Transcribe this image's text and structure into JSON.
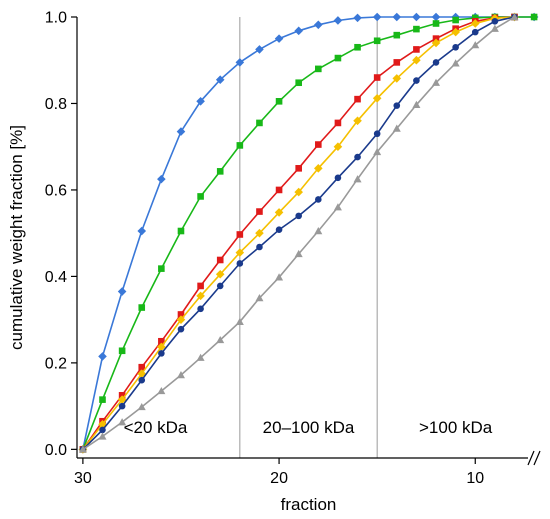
{
  "chart_data": {
    "type": "line",
    "title": "",
    "xlabel": "fraction",
    "ylabel": "cumulative weight fraction  [%]",
    "xlim": [
      30.3,
      6.7
    ],
    "ylim": [
      -0.02,
      1.0
    ],
    "x_ticks": [
      30,
      20,
      10
    ],
    "x_tick_labels": [
      "30",
      "20",
      "10"
    ],
    "y_ticks": [
      0.0,
      0.2,
      0.4,
      0.6,
      0.8,
      1.0
    ],
    "y_tick_labels": [
      "0.0",
      "0.2",
      "0.4",
      "0.6",
      "0.8",
      "1.0"
    ],
    "grid": false,
    "legend": "none",
    "x_axis_break": true,
    "vertical_lines": [
      22,
      15
    ],
    "regions": [
      {
        "label": "<20 kDa",
        "x": 26.3
      },
      {
        "label": "20–100 kDa",
        "x": 18.5
      },
      {
        "label": ">100 kDa",
        "x": 11.0
      }
    ],
    "series": [
      {
        "color": "#3a78d8",
        "marker": "diamond",
        "x": [
          30,
          29,
          28,
          27,
          26,
          25,
          24,
          23,
          22,
          21,
          20,
          19,
          18,
          17,
          16,
          15,
          14,
          13,
          12,
          11,
          10,
          9,
          8,
          7
        ],
        "y": [
          0,
          0.215,
          0.365,
          0.505,
          0.625,
          0.735,
          0.805,
          0.855,
          0.895,
          0.925,
          0.95,
          0.968,
          0.982,
          0.992,
          0.998,
          1.0,
          1.0,
          1.0,
          1.0,
          1.0,
          1.0,
          1.0,
          1.0,
          1.0
        ]
      },
      {
        "color": "#18b818",
        "marker": "square",
        "x": [
          30,
          29,
          28,
          27,
          26,
          25,
          24,
          23,
          22,
          21,
          20,
          19,
          18,
          17,
          16,
          15,
          14,
          13,
          12,
          11,
          10,
          9,
          8,
          7
        ],
        "y": [
          0,
          0.115,
          0.228,
          0.328,
          0.418,
          0.505,
          0.585,
          0.643,
          0.703,
          0.755,
          0.805,
          0.848,
          0.88,
          0.905,
          0.93,
          0.945,
          0.958,
          0.972,
          0.985,
          0.993,
          0.998,
          1.0,
          1.0,
          1.0
        ]
      },
      {
        "color": "#e01a1a",
        "marker": "square",
        "x": [
          30,
          29,
          28,
          27,
          26,
          25,
          24,
          23,
          22,
          21,
          20,
          19,
          18,
          17,
          16,
          15,
          14,
          13,
          12,
          11,
          10,
          9,
          8
        ],
        "y": [
          0,
          0.065,
          0.125,
          0.19,
          0.25,
          0.312,
          0.378,
          0.438,
          0.497,
          0.55,
          0.6,
          0.65,
          0.705,
          0.755,
          0.81,
          0.86,
          0.895,
          0.925,
          0.95,
          0.973,
          0.99,
          0.998,
          1.0
        ]
      },
      {
        "color": "#f5c000",
        "marker": "diamond",
        "x": [
          30,
          29,
          28,
          27,
          26,
          25,
          24,
          23,
          22,
          21,
          20,
          19,
          18,
          17,
          16,
          15,
          14,
          13,
          12,
          11,
          10,
          9,
          8
        ],
        "y": [
          0,
          0.058,
          0.115,
          0.175,
          0.237,
          0.3,
          0.355,
          0.405,
          0.455,
          0.5,
          0.548,
          0.595,
          0.65,
          0.7,
          0.76,
          0.812,
          0.858,
          0.9,
          0.94,
          0.965,
          0.985,
          0.997,
          1.0
        ]
      },
      {
        "color": "#1a3a8c",
        "marker": "circle",
        "x": [
          30,
          29,
          28,
          27,
          26,
          25,
          24,
          23,
          22,
          21,
          20,
          19,
          18,
          17,
          16,
          15,
          14,
          13,
          12,
          11,
          10,
          9,
          8
        ],
        "y": [
          0,
          0.045,
          0.1,
          0.16,
          0.222,
          0.278,
          0.325,
          0.378,
          0.43,
          0.468,
          0.508,
          0.54,
          0.578,
          0.628,
          0.676,
          0.73,
          0.795,
          0.853,
          0.895,
          0.93,
          0.965,
          0.99,
          1.0
        ]
      },
      {
        "color": "#999999",
        "marker": "triangle",
        "x": [
          30,
          29,
          28,
          27,
          26,
          25,
          24,
          23,
          22,
          21,
          20,
          19,
          18,
          17,
          16,
          15,
          14,
          13,
          12,
          11,
          10,
          9,
          8
        ],
        "y": [
          0,
          0.03,
          0.063,
          0.098,
          0.135,
          0.172,
          0.212,
          0.253,
          0.295,
          0.35,
          0.398,
          0.452,
          0.505,
          0.56,
          0.625,
          0.688,
          0.742,
          0.797,
          0.848,
          0.893,
          0.935,
          0.973,
          1.0
        ]
      }
    ]
  }
}
